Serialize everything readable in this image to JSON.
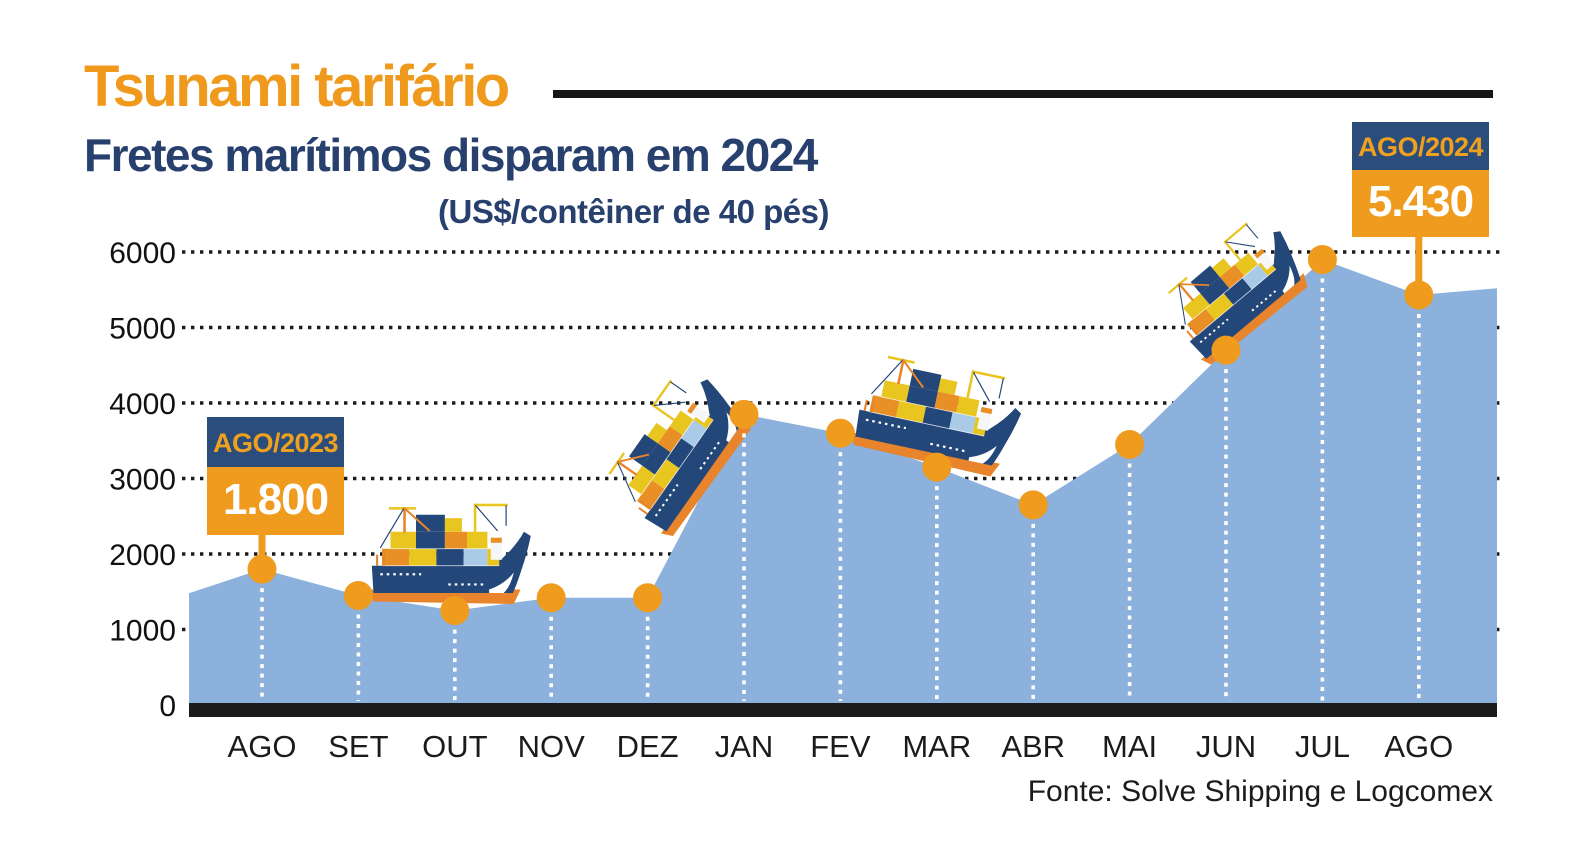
{
  "header": {
    "title": "Tsunami tarifário",
    "subtitle": "Fretes marítimos disparam em 2024",
    "unit_label": "(US$/contêiner de 40 pés)"
  },
  "chart_data": {
    "type": "area",
    "title": "Fretes marítimos disparam em 2024",
    "ylabel": "US$/contêiner de 40 pés",
    "categories": [
      "AGO",
      "SET",
      "OUT",
      "NOV",
      "DEZ",
      "JAN",
      "FEV",
      "MAR",
      "ABR",
      "MAI",
      "JUN",
      "JUL",
      "AGO"
    ],
    "values": [
      1800,
      1450,
      1250,
      1420,
      1420,
      3850,
      3600,
      3150,
      2650,
      3450,
      4700,
      5900,
      5430
    ],
    "y_ticks": [
      0,
      1000,
      2000,
      3000,
      4000,
      5000,
      6000
    ],
    "ylim": [
      0,
      6000
    ],
    "grid": "horizontal-dotted",
    "legend": "none",
    "edge_values": {
      "left": 1480,
      "right": 5520
    },
    "annotations": [
      {
        "label": "AGO/2023",
        "value": 1800,
        "display": "1.800",
        "month_index": 0
      },
      {
        "label": "AGO/2024",
        "value": 5430,
        "display": "5.430",
        "month_index": 12
      }
    ]
  },
  "badges": {
    "start": {
      "period": "AGO/2023",
      "value": "1.800"
    },
    "end": {
      "period": "AGO/2024",
      "value": "5.430"
    }
  },
  "source": {
    "text": "Fonte: Solve Shipping e Logcomex"
  },
  "colors": {
    "accent_orange": "#EE9B1E",
    "badge_navy": "#2A4D7C",
    "headline_orange": "#F09A1D",
    "subtitle_navy": "#27406E",
    "area_blue": "#8BB1DC",
    "axis_black": "#1B1B1B",
    "ship_hull_navy": "#24477A",
    "ship_orange": "#E8842B",
    "container_yellow": "#E9C51F",
    "container_light_blue": "#A9CBE8"
  },
  "decorations": {
    "ship_icon": "cargo-ship-icon",
    "ship_count": 4
  }
}
